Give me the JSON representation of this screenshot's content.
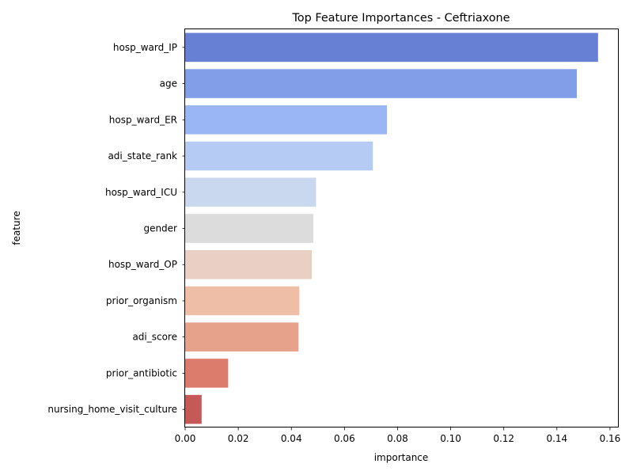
{
  "chart_data": {
    "type": "bar",
    "orientation": "horizontal",
    "title": "Top Feature Importances - Ceftriaxone",
    "xlabel": "importance",
    "ylabel": "feature",
    "categories": [
      "hosp_ward_IP",
      "age",
      "hosp_ward_ER",
      "adi_state_rank",
      "hosp_ward_ICU",
      "gender",
      "hosp_ward_OP",
      "prior_organism",
      "adi_score",
      "prior_antibiotic",
      "nursing_home_visit_culture"
    ],
    "values": [
      0.1555,
      0.1475,
      0.076,
      0.0707,
      0.0493,
      0.0483,
      0.0477,
      0.043,
      0.0427,
      0.0162,
      0.0062
    ],
    "colors": [
      "#6880d4",
      "#829ee8",
      "#9bb6f5",
      "#b6cbf4",
      "#cad8ef",
      "#dcdcdc",
      "#ead0c4",
      "#eebea7",
      "#e7a28b",
      "#db7c6c",
      "#c45a57"
    ],
    "xticks": [
      "0.00",
      "0.02",
      "0.04",
      "0.06",
      "0.08",
      "0.10",
      "0.12",
      "0.14",
      "0.16"
    ],
    "xlim": [
      0,
      0.1633
    ],
    "grid": false,
    "legend": "none"
  }
}
